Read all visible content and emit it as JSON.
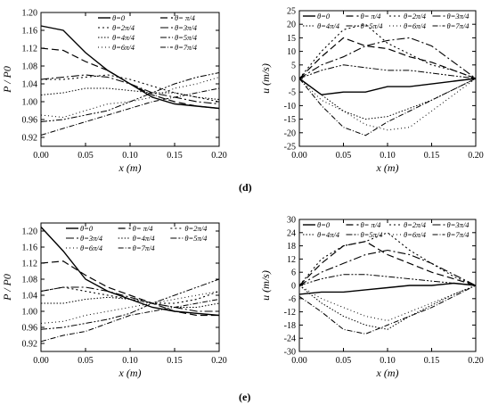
{
  "panel_labels": [
    "(d)",
    "(e)"
  ],
  "legend_entries": [
    "θ=0",
    "θ= π/4",
    "θ=2π/4",
    "θ=3π/4",
    "θ=4π/4",
    "θ=5π/4",
    "θ=6π/4",
    "θ=7π/4"
  ],
  "chart_data": [
    {
      "id": "d-pressure",
      "type": "line",
      "xlabel": "x (m)",
      "ylabel": "P / P0",
      "xlim": [
        0,
        0.2
      ],
      "ylim": [
        0.9,
        1.2
      ],
      "xticks": [
        "0.00",
        "0.05",
        "0.10",
        "0.15",
        "0.20"
      ],
      "yticks": [
        "0.92",
        "0.96",
        "1.00",
        "1.04",
        "1.08",
        "1.12",
        "1.16",
        "1.20"
      ],
      "legend_placement": "top-right",
      "x": [
        0,
        0.025,
        0.05,
        0.075,
        0.1,
        0.125,
        0.15,
        0.175,
        0.2
      ],
      "series": [
        {
          "name": "θ=0",
          "values": [
            1.17,
            1.16,
            1.11,
            1.07,
            1.04,
            1.01,
            0.995,
            0.99,
            0.985
          ]
        },
        {
          "name": "θ= π/4",
          "values": [
            1.12,
            1.115,
            1.09,
            1.07,
            1.04,
            1.015,
            1.0,
            0.99,
            0.985
          ]
        },
        {
          "name": "θ=2π/4",
          "values": [
            1.05,
            1.05,
            1.055,
            1.06,
            1.05,
            1.035,
            1.02,
            1.01,
            1.0
          ]
        },
        {
          "name": "θ=3π/4",
          "values": [
            1.05,
            1.055,
            1.06,
            1.055,
            1.04,
            1.02,
            1.01,
            1.0,
            0.995
          ]
        },
        {
          "name": "θ=4π/4",
          "values": [
            1.015,
            1.02,
            1.03,
            1.03,
            1.025,
            1.02,
            1.02,
            1.01,
            1.005
          ]
        },
        {
          "name": "θ=5π/4",
          "values": [
            0.955,
            0.96,
            0.97,
            0.98,
            1.0,
            1.02,
            1.04,
            1.055,
            1.065
          ]
        },
        {
          "name": "θ=6π/4",
          "values": [
            0.97,
            0.965,
            0.98,
            0.995,
            1.0,
            1.01,
            1.03,
            1.04,
            1.055
          ]
        },
        {
          "name": "θ=7π/4",
          "values": [
            0.925,
            0.94,
            0.955,
            0.97,
            0.985,
            1.0,
            1.01,
            1.02,
            1.03
          ]
        }
      ]
    },
    {
      "id": "d-velocity",
      "type": "line",
      "xlabel": "x (m)",
      "ylabel": "u (m/s)",
      "xlim": [
        0,
        0.2
      ],
      "ylim": [
        -25,
        25
      ],
      "xticks": [
        "0.00",
        "0.05",
        "0.10",
        "0.15",
        "0.20"
      ],
      "yticks": [
        "-25",
        "-20",
        "-15",
        "-10",
        "-5",
        "0",
        "5",
        "10",
        "15",
        "20",
        "25"
      ],
      "legend_placement": "top",
      "x": [
        0,
        0.025,
        0.05,
        0.075,
        0.1,
        0.125,
        0.15,
        0.175,
        0.2
      ],
      "series": [
        {
          "name": "θ=0",
          "values": [
            0,
            -6,
            -5,
            -5,
            -3,
            -3,
            -2,
            -1,
            0
          ]
        },
        {
          "name": "θ= π/4",
          "values": [
            0,
            8,
            15,
            12,
            11,
            8,
            6,
            3,
            0
          ]
        },
        {
          "name": "θ=2π/4",
          "values": [
            0,
            10,
            18,
            20,
            13,
            9,
            5,
            3,
            0
          ]
        },
        {
          "name": "θ=3π/4",
          "values": [
            0,
            5,
            8,
            12,
            14,
            15,
            12,
            6,
            0
          ]
        },
        {
          "name": "θ=4π/4",
          "values": [
            0,
            -6,
            -12,
            -15,
            -14,
            -11,
            -8,
            -4,
            0
          ]
        },
        {
          "name": "θ=5π/4",
          "values": [
            0,
            3,
            5,
            4,
            3,
            3,
            2,
            1,
            0
          ]
        },
        {
          "name": "θ=6π/4",
          "values": [
            0,
            -8,
            -12,
            -17,
            -19,
            -18,
            -12,
            -6,
            0
          ]
        },
        {
          "name": "θ=7π/4",
          "values": [
            0,
            -10,
            -18,
            -21,
            -16,
            -12,
            -8,
            -4,
            0
          ]
        }
      ]
    },
    {
      "id": "e-pressure",
      "type": "line",
      "xlabel": "x (m)",
      "ylabel": "P / P0",
      "xlim": [
        0,
        0.2
      ],
      "ylim": [
        0.9,
        1.22
      ],
      "xticks": [
        "0.00",
        "0.05",
        "0.10",
        "0.15",
        "0.20"
      ],
      "yticks": [
        "0.92",
        "0.96",
        "1.00",
        "1.04",
        "1.08",
        "1.12",
        "1.16",
        "1.20"
      ],
      "legend_placement": "top-right",
      "x": [
        0,
        0.025,
        0.05,
        0.075,
        0.1,
        0.125,
        0.15,
        0.175,
        0.2
      ],
      "series": [
        {
          "name": "θ=0",
          "values": [
            1.21,
            1.15,
            1.08,
            1.05,
            1.03,
            1.01,
            1.0,
            0.995,
            0.99
          ]
        },
        {
          "name": "θ= π/4",
          "values": [
            1.12,
            1.125,
            1.09,
            1.06,
            1.04,
            1.02,
            1.0,
            0.99,
            0.99
          ]
        },
        {
          "name": "θ=2π/4",
          "values": [
            1.05,
            1.06,
            1.05,
            1.04,
            1.03,
            1.02,
            1.02,
            1.03,
            1.05
          ]
        },
        {
          "name": "θ=3π/4",
          "values": [
            1.05,
            1.06,
            1.06,
            1.05,
            1.035,
            1.02,
            1.01,
            1.0,
            1.0
          ]
        },
        {
          "name": "θ=4π/4",
          "values": [
            1.02,
            1.02,
            1.03,
            1.035,
            1.03,
            1.02,
            1.01,
            1.01,
            1.02
          ]
        },
        {
          "name": "θ=5π/4",
          "values": [
            0.955,
            0.96,
            0.97,
            0.98,
            0.995,
            1.02,
            1.04,
            1.06,
            1.08
          ]
        },
        {
          "name": "θ=6π/4",
          "values": [
            0.97,
            0.975,
            0.99,
            1.0,
            1.01,
            1.02,
            1.03,
            1.04,
            1.05
          ]
        },
        {
          "name": "θ=7π/4",
          "values": [
            0.925,
            0.94,
            0.95,
            0.97,
            0.99,
            1.0,
            1.01,
            1.02,
            1.03
          ]
        }
      ]
    },
    {
      "id": "e-velocity",
      "type": "line",
      "xlabel": "x (m)",
      "ylabel": "u (m/s)",
      "xlim": [
        0,
        0.2
      ],
      "ylim": [
        -30,
        30
      ],
      "xticks": [
        "0.00",
        "0.05",
        "0.10",
        "0.15",
        "0.20"
      ],
      "yticks": [
        "-30",
        "-24",
        "-18",
        "-12",
        "-6",
        "0",
        "6",
        "12",
        "18",
        "24",
        "30"
      ],
      "legend_placement": "top",
      "x": [
        0,
        0.025,
        0.05,
        0.075,
        0.1,
        0.125,
        0.15,
        0.175,
        0.2
      ],
      "series": [
        {
          "name": "θ=0",
          "values": [
            -4,
            -3,
            -3,
            -2,
            -1,
            0,
            0,
            1,
            0
          ]
        },
        {
          "name": "θ= π/4",
          "values": [
            0,
            10,
            18,
            20,
            14,
            10,
            6,
            3,
            0
          ]
        },
        {
          "name": "θ=2π/4",
          "values": [
            0,
            12,
            18,
            20,
            24,
            16,
            10,
            4,
            0
          ]
        },
        {
          "name": "θ=3π/4",
          "values": [
            0,
            6,
            10,
            14,
            16,
            14,
            10,
            5,
            0
          ]
        },
        {
          "name": "θ=4π/4",
          "values": [
            0,
            -8,
            -14,
            -18,
            -20,
            -14,
            -9,
            -4,
            0
          ]
        },
        {
          "name": "θ=5π/4",
          "values": [
            0,
            3,
            5,
            5,
            4,
            3,
            2,
            1,
            0
          ]
        },
        {
          "name": "θ=6π/4",
          "values": [
            0,
            -6,
            -10,
            -14,
            -16,
            -12,
            -8,
            -4,
            0
          ]
        },
        {
          "name": "θ=7π/4",
          "values": [
            -5,
            -12,
            -20,
            -22,
            -18,
            -14,
            -10,
            -5,
            0
          ]
        }
      ]
    }
  ]
}
